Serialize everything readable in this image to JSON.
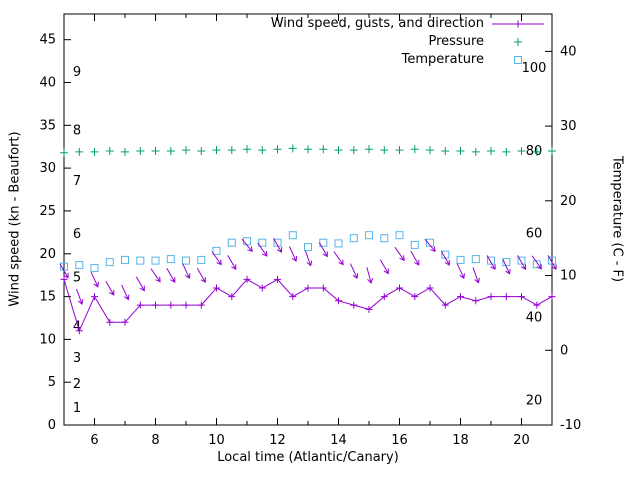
{
  "figure": {
    "background": "#ffffff",
    "legend": [
      {
        "label": "Wind speed, gusts, and direction",
        "marker": "line-plus",
        "color": "#9400d3"
      },
      {
        "label": "Pressure",
        "marker": "plus",
        "color": "#009e73"
      },
      {
        "label": "Temperature",
        "marker": "open-square",
        "color": "#56b4e9"
      }
    ]
  },
  "chart_data": {
    "type": "line",
    "title": "",
    "xlabel": "Local time (Atlantic/Canary)",
    "ylabel_left": "Wind speed (kn - Beaufort)",
    "ylabel_right": "Temperature (C - F)",
    "x_range": [
      5,
      21
    ],
    "x_ticks": [
      6,
      8,
      10,
      12,
      14,
      16,
      18,
      20
    ],
    "x_minor_step": 1,
    "y_left_range": [
      0,
      48
    ],
    "y_left_ticks": [
      0,
      5,
      10,
      15,
      20,
      25,
      30,
      35,
      40,
      45
    ],
    "y_right_range": [
      -10,
      45
    ],
    "y_right_ticks": [
      -10,
      0,
      10,
      20,
      30,
      40
    ],
    "grid": false,
    "legend_position": "top-right-inside",
    "beaufort_scale_labels": [
      {
        "label": "1",
        "kn": 2
      },
      {
        "label": "2",
        "kn": 4.8
      },
      {
        "label": "3",
        "kn": 7.8
      },
      {
        "label": "4",
        "kn": 11.5
      },
      {
        "label": "5",
        "kn": 17.2
      },
      {
        "label": "6",
        "kn": 22.3
      },
      {
        "label": "7",
        "kn": 28.5
      },
      {
        "label": "8",
        "kn": 34.4
      },
      {
        "label": "9",
        "kn": 41.2
      }
    ],
    "fahrenheit_scale_labels": [
      {
        "label": "20",
        "c": -6.7
      },
      {
        "label": "40",
        "c": 4.4
      },
      {
        "label": "60",
        "c": 15.6
      },
      {
        "label": "80",
        "c": 26.7
      },
      {
        "label": "100",
        "c": 37.8
      }
    ],
    "x": [
      5,
      5.5,
      6,
      6.5,
      7,
      7.5,
      8,
      8.5,
      9,
      9.5,
      10,
      10.5,
      11,
      11.5,
      12,
      12.5,
      13,
      13.5,
      14,
      14.5,
      15,
      15.5,
      16,
      16.5,
      17,
      17.5,
      18,
      18.5,
      19,
      19.5,
      20,
      20.5,
      21
    ],
    "series": [
      {
        "name": "Wind speed",
        "axis": "left",
        "unit": "kn",
        "color": "#9400d3",
        "style": "line+plus",
        "values": [
          17,
          11,
          15,
          12,
          12,
          14,
          14,
          14,
          14,
          14,
          16,
          15,
          17,
          16,
          17,
          15,
          16,
          16,
          14.5,
          14,
          13.5,
          15,
          16,
          15,
          16,
          14,
          15,
          14.5,
          15,
          15,
          15,
          14,
          15
        ]
      },
      {
        "name": "Gusts",
        "axis": "left",
        "unit": "kn",
        "color": "#9400d3",
        "style": "direction-arrow",
        "values": [
          18,
          15,
          17,
          16,
          15.5,
          16.5,
          17.5,
          17.5,
          18,
          17.5,
          19.5,
          19,
          21,
          20.5,
          21,
          20,
          19.5,
          20.5,
          19.5,
          18,
          17.5,
          18.5,
          20,
          19.5,
          21,
          19.5,
          18,
          17.5,
          19,
          18.5,
          19,
          19,
          19
        ],
        "angles_deg": [
          60,
          70,
          65,
          60,
          65,
          60,
          55,
          60,
          65,
          60,
          55,
          60,
          50,
          55,
          60,
          65,
          70,
          60,
          55,
          65,
          75,
          60,
          55,
          60,
          50,
          60,
          65,
          70,
          60,
          65,
          60,
          55,
          60
        ]
      },
      {
        "name": "Pressure",
        "axis": "left",
        "color": "#009e73",
        "style": "plus",
        "values": [
          31.8,
          31.9,
          31.9,
          32,
          31.9,
          32,
          32,
          32,
          32.1,
          32,
          32.1,
          32.1,
          32.2,
          32.1,
          32.2,
          32.3,
          32.2,
          32.2,
          32.1,
          32.1,
          32.2,
          32.1,
          32.1,
          32.2,
          32.1,
          32,
          32,
          31.9,
          32,
          31.9,
          32,
          31.9,
          32
        ]
      },
      {
        "name": "Temperature",
        "axis": "right",
        "unit": "C",
        "color": "#56b4e9",
        "style": "open-square",
        "values": [
          11.2,
          11.4,
          11,
          11.8,
          12.1,
          12,
          12,
          12.2,
          12,
          12.1,
          13.3,
          14.4,
          14.6,
          14.4,
          14.4,
          15.4,
          13.8,
          14.4,
          14.3,
          15,
          15.4,
          15,
          15.4,
          14.1,
          14.4,
          12.8,
          12.1,
          12.2,
          12,
          11.8,
          12,
          11.5,
          12
        ]
      }
    ]
  }
}
